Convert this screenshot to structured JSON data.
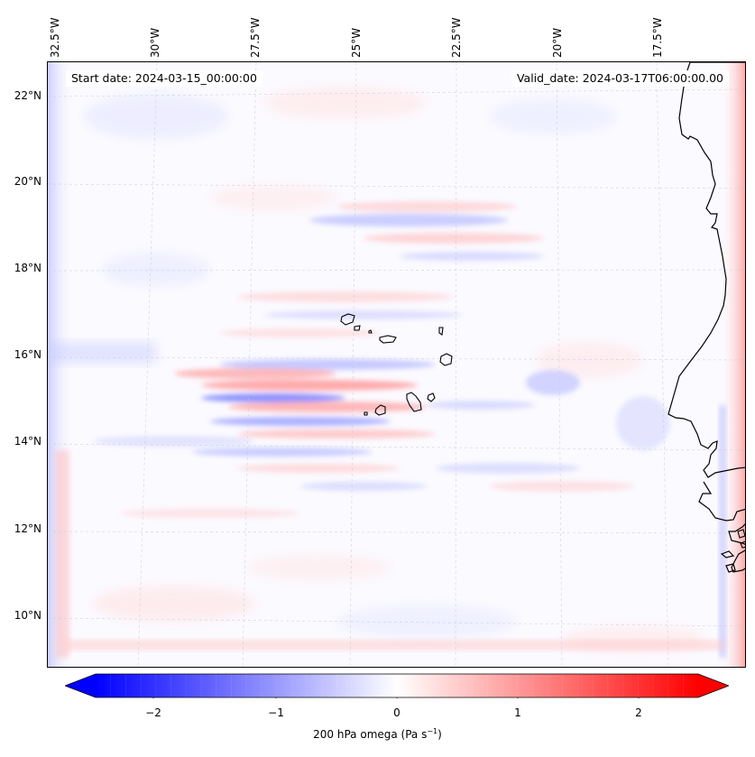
{
  "map": {
    "title_left": "Start date: 2024-03-15_00:00:00",
    "title_right": "Valid_date: 2024-03-17T06:00:00.00",
    "longitude_labels": [
      "32.5°W",
      "30°W",
      "27.5°W",
      "25°W",
      "22.5°W",
      "20°W",
      "17.5°W"
    ],
    "latitude_labels": [
      "22°N",
      "20°N",
      "18°N",
      "16°N",
      "14°N",
      "12°N",
      "10°N"
    ],
    "region": "Cape Verde Islands and West African coast"
  },
  "colorbar": {
    "tick_labels": [
      "−2",
      "−1",
      "0",
      "1",
      "2"
    ],
    "label_main": "200 hPa omega (Pa s",
    "label_exp": "−1",
    "label_close": ")",
    "colors": {
      "negative": "#0000ff",
      "neutral": "#ffffff",
      "positive": "#ff0000"
    }
  }
}
